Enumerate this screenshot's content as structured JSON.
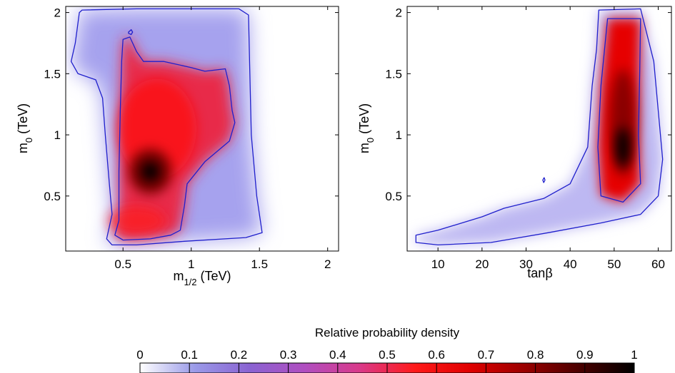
{
  "figure": {
    "colorbar": {
      "title": "Relative probability density",
      "ticks": [
        "0",
        "0.1",
        "0.2",
        "0.3",
        "0.4",
        "0.5",
        "0.6",
        "0.7",
        "0.8",
        "0.9",
        "1"
      ],
      "colormap": [
        "#ffffff",
        "#9a9ae8",
        "#8a63d2",
        "#b04ec0",
        "#d93a8a",
        "#ff1a1a",
        "#e00000",
        "#9a0000",
        "#4a0000",
        "#000000"
      ]
    },
    "contour_color": "#1f1fcc"
  },
  "chart_data": [
    {
      "type": "heatmap",
      "panel": "left",
      "xlabel": "m",
      "xlabel_sub": "1/2",
      "xlabel_suffix": " (TeV)",
      "ylabel": "m",
      "ylabel_sub": "0",
      "ylabel_suffix": " (TeV)",
      "xlim": [
        0.08,
        2.08
      ],
      "ylim": [
        0.05,
        2.05
      ],
      "xticks": [
        0.5,
        1,
        1.5,
        2
      ],
      "xtick_labels": [
        "0.5",
        "1",
        "1.5",
        "2"
      ],
      "yticks": [
        0.5,
        1,
        1.5,
        2
      ],
      "ytick_labels": [
        "0.5",
        "1",
        "1.5",
        "2"
      ],
      "peak": {
        "x": 0.7,
        "y": 0.7,
        "density": 1.0
      },
      "contours": [
        {
          "level": "outer",
          "points": [
            [
              0.18,
              2.0
            ],
            [
              0.15,
              1.75
            ],
            [
              0.12,
              1.6
            ],
            [
              0.17,
              1.5
            ],
            [
              0.3,
              1.45
            ],
            [
              0.35,
              1.3
            ],
            [
              0.37,
              1.0
            ],
            [
              0.4,
              0.6
            ],
            [
              0.42,
              0.35
            ],
            [
              0.38,
              0.15
            ],
            [
              0.42,
              0.1
            ],
            [
              0.6,
              0.1
            ],
            [
              0.95,
              0.13
            ],
            [
              1.4,
              0.16
            ],
            [
              1.52,
              0.2
            ],
            [
              1.48,
              0.5
            ],
            [
              1.44,
              1.0
            ],
            [
              1.43,
              1.5
            ],
            [
              1.42,
              1.98
            ],
            [
              1.35,
              2.03
            ],
            [
              0.6,
              2.03
            ],
            [
              0.2,
              2.02
            ]
          ]
        },
        {
          "level": "inner",
          "points": [
            [
              0.5,
              1.78
            ],
            [
              0.55,
              1.8
            ],
            [
              0.6,
              1.68
            ],
            [
              0.65,
              1.6
            ],
            [
              0.8,
              1.6
            ],
            [
              1.0,
              1.55
            ],
            [
              1.1,
              1.52
            ],
            [
              1.25,
              1.54
            ],
            [
              1.28,
              1.4
            ],
            [
              1.3,
              1.2
            ],
            [
              1.32,
              1.1
            ],
            [
              1.28,
              0.95
            ],
            [
              1.1,
              0.78
            ],
            [
              0.97,
              0.6
            ],
            [
              0.95,
              0.42
            ],
            [
              0.92,
              0.22
            ],
            [
              0.85,
              0.18
            ],
            [
              0.7,
              0.15
            ],
            [
              0.5,
              0.14
            ],
            [
              0.44,
              0.18
            ],
            [
              0.47,
              0.3
            ],
            [
              0.47,
              0.7
            ],
            [
              0.48,
              1.2
            ],
            [
              0.49,
              1.6
            ]
          ]
        },
        {
          "level": "island",
          "points": [
            [
              0.54,
              1.84
            ],
            [
              0.56,
              1.86
            ],
            [
              0.57,
              1.84
            ],
            [
              0.56,
              1.82
            ],
            [
              0.54,
              1.83
            ]
          ]
        }
      ]
    },
    {
      "type": "heatmap",
      "panel": "right",
      "xlabel": "tanβ",
      "ylabel": "m",
      "ylabel_sub": "0",
      "ylabel_suffix": " (TeV)",
      "xlim": [
        3,
        63
      ],
      "ylim": [
        0.05,
        2.05
      ],
      "xticks": [
        10,
        20,
        30,
        40,
        50,
        60
      ],
      "xtick_labels": [
        "10",
        "20",
        "30",
        "40",
        "50",
        "60"
      ],
      "yticks": [
        0.5,
        1,
        1.5,
        2
      ],
      "ytick_labels": [
        "0.5",
        "1",
        "1.5",
        "2"
      ],
      "peak": {
        "x": 52,
        "y": 0.9,
        "density": 1.0
      },
      "contours": [
        {
          "level": "outer",
          "points": [
            [
              5,
              0.12
            ],
            [
              5,
              0.18
            ],
            [
              10,
              0.22
            ],
            [
              20,
              0.33
            ],
            [
              25,
              0.4
            ],
            [
              34,
              0.48
            ],
            [
              40,
              0.6
            ],
            [
              44,
              0.9
            ],
            [
              45,
              1.4
            ],
            [
              46,
              1.7
            ],
            [
              46.5,
              2.02
            ],
            [
              56,
              2.03
            ],
            [
              59,
              1.6
            ],
            [
              60,
              1.2
            ],
            [
              61,
              0.8
            ],
            [
              60,
              0.5
            ],
            [
              56,
              0.35
            ],
            [
              47,
              0.28
            ],
            [
              35,
              0.2
            ],
            [
              22,
              0.12
            ],
            [
              10,
              0.1
            ],
            [
              5,
              0.12
            ]
          ]
        },
        {
          "level": "inner",
          "points": [
            [
              48.5,
              1.95
            ],
            [
              56,
              1.95
            ],
            [
              55.8,
              1.5
            ],
            [
              55.5,
              1.0
            ],
            [
              56,
              0.6
            ],
            [
              52,
              0.45
            ],
            [
              47,
              0.5
            ],
            [
              46.3,
              0.9
            ],
            [
              47,
              1.4
            ]
          ]
        },
        {
          "level": "island",
          "points": [
            [
              33.8,
              0.63
            ],
            [
              34.1,
              0.65
            ],
            [
              34.3,
              0.63
            ],
            [
              34,
              0.61
            ]
          ]
        }
      ]
    }
  ]
}
